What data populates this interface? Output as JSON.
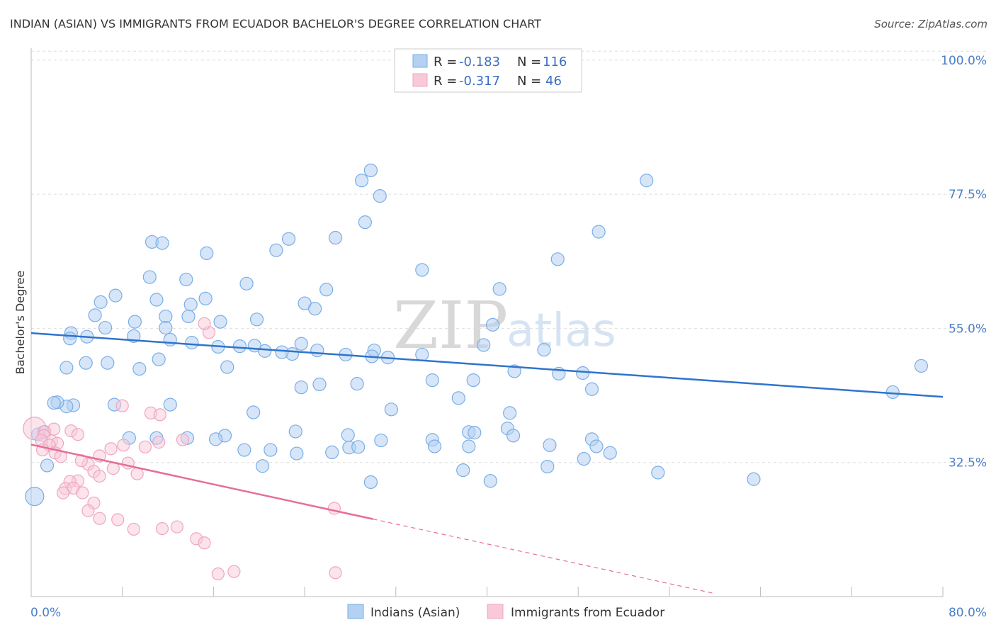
{
  "chart_data": {
    "type": "scatter",
    "title": "INDIAN (ASIAN) VS IMMIGRANTS FROM ECUADOR BACHELOR'S DEGREE CORRELATION CHART",
    "source": "Source: ZipAtlas.com",
    "watermark": [
      "ZIP",
      "atlas"
    ],
    "ylabel": "Bachelor's Degree",
    "xlim": [
      0,
      80
    ],
    "ylim": [
      10,
      102
    ],
    "y_ticks": [
      {
        "value": 100,
        "label": "100.0%"
      },
      {
        "value": 77.5,
        "label": "77.5%"
      },
      {
        "value": 55,
        "label": "55.0%"
      },
      {
        "value": 32.5,
        "label": "32.5%"
      }
    ],
    "x_axis_labels": [
      {
        "value": 0,
        "label": "0.0%"
      },
      {
        "value": 80,
        "label": "80.0%"
      }
    ],
    "legend": {
      "entries": [
        {
          "r_label": "R =",
          "r_value": "-0.183",
          "n_label": "N =",
          "n_value": "116"
        },
        {
          "r_label": "R =",
          "r_value": "-0.317",
          "n_label": "N =",
          "n_value": "46"
        }
      ]
    },
    "series": [
      {
        "name": "Indians (Asian)",
        "color": "#7aaee6",
        "fill": "#b4d0f2",
        "line_color": "#2f74cc",
        "trend": {
          "x0": 0,
          "y0": 54.2,
          "x1": 80,
          "y1": 43.5,
          "dashed_from": null
        },
        "points": [
          [
            29.8,
            81.5
          ],
          [
            29.0,
            79.8
          ],
          [
            30.6,
            77.2
          ],
          [
            54.0,
            79.8
          ],
          [
            29.3,
            72.8
          ],
          [
            49.8,
            71.2
          ],
          [
            26.7,
            70.2
          ],
          [
            22.6,
            70.0
          ],
          [
            10.6,
            69.5
          ],
          [
            11.5,
            69.3
          ],
          [
            21.5,
            68.1
          ],
          [
            15.4,
            67.6
          ],
          [
            46.2,
            66.6
          ],
          [
            34.3,
            64.8
          ],
          [
            10.4,
            63.6
          ],
          [
            13.6,
            63.2
          ],
          [
            18.9,
            62.5
          ],
          [
            25.9,
            61.5
          ],
          [
            41.1,
            61.6
          ],
          [
            7.4,
            60.5
          ],
          [
            15.3,
            60.0
          ],
          [
            11.0,
            59.8
          ],
          [
            6.1,
            59.4
          ],
          [
            14.0,
            59.0
          ],
          [
            24.0,
            59.2
          ],
          [
            24.9,
            58.3
          ],
          [
            5.6,
            57.2
          ],
          [
            11.8,
            57.0
          ],
          [
            13.8,
            57.0
          ],
          [
            9.1,
            56.1
          ],
          [
            19.8,
            56.5
          ],
          [
            16.6,
            56.1
          ],
          [
            40.5,
            55.6
          ],
          [
            6.5,
            55.1
          ],
          [
            11.8,
            55.1
          ],
          [
            9.0,
            53.7
          ],
          [
            12.2,
            53.1
          ],
          [
            14.1,
            52.6
          ],
          [
            18.3,
            52.0
          ],
          [
            16.4,
            51.9
          ],
          [
            20.5,
            51.2
          ],
          [
            30.1,
            51.3
          ],
          [
            25.1,
            51.3
          ],
          [
            29.9,
            50.3
          ],
          [
            31.3,
            50.1
          ],
          [
            22.9,
            50.7
          ],
          [
            27.6,
            50.6
          ],
          [
            34.3,
            50.6
          ],
          [
            3.5,
            54.2
          ],
          [
            4.9,
            53.6
          ],
          [
            3.4,
            53.3
          ],
          [
            23.7,
            52.4
          ],
          [
            39.7,
            52.2
          ],
          [
            19.6,
            52.1
          ],
          [
            45.0,
            51.4
          ],
          [
            22.0,
            51.0
          ],
          [
            11.2,
            49.8
          ],
          [
            6.7,
            49.2
          ],
          [
            4.8,
            49.2
          ],
          [
            3.1,
            48.4
          ],
          [
            17.2,
            48.5
          ],
          [
            9.5,
            48.2
          ],
          [
            42.4,
            47.8
          ],
          [
            46.3,
            47.4
          ],
          [
            48.4,
            47.5
          ],
          [
            35.2,
            46.3
          ],
          [
            38.8,
            46.3
          ],
          [
            28.6,
            45.7
          ],
          [
            25.3,
            45.6
          ],
          [
            23.7,
            45.1
          ],
          [
            78.1,
            48.7
          ],
          [
            75.6,
            44.3
          ],
          [
            49.2,
            44.8
          ],
          [
            37.5,
            43.3
          ],
          [
            3.7,
            42.1
          ],
          [
            3.1,
            41.9
          ],
          [
            2.3,
            42.6
          ],
          [
            2.0,
            42.5
          ],
          [
            7.3,
            42.2
          ],
          [
            12.2,
            42.2
          ],
          [
            31.6,
            41.4
          ],
          [
            42.0,
            40.8
          ],
          [
            41.8,
            38.2
          ],
          [
            42.3,
            37.0
          ],
          [
            35.2,
            36.3
          ],
          [
            35.4,
            35.2
          ],
          [
            38.4,
            35.2
          ],
          [
            30.7,
            36.2
          ],
          [
            27.9,
            35.0
          ],
          [
            27.8,
            37.1
          ],
          [
            23.2,
            37.7
          ],
          [
            19.5,
            40.9
          ],
          [
            17.0,
            37.0
          ],
          [
            16.2,
            36.4
          ],
          [
            13.7,
            36.6
          ],
          [
            11.0,
            36.6
          ],
          [
            8.6,
            36.6
          ],
          [
            38.4,
            37.6
          ],
          [
            38.9,
            37.5
          ],
          [
            49.2,
            36.4
          ],
          [
            45.5,
            35.4
          ],
          [
            49.6,
            35.2
          ],
          [
            50.8,
            34.1
          ],
          [
            48.5,
            33.1
          ],
          [
            23.3,
            34.0
          ],
          [
            21.0,
            34.6
          ],
          [
            18.7,
            34.6
          ],
          [
            26.4,
            34.2
          ],
          [
            28.7,
            35.1
          ],
          [
            20.3,
            31.9
          ],
          [
            37.9,
            31.2
          ],
          [
            45.3,
            31.8
          ],
          [
            55.0,
            30.8
          ],
          [
            63.4,
            29.7
          ],
          [
            40.3,
            29.4
          ],
          [
            29.8,
            29.2
          ],
          [
            1.4,
            32.0
          ],
          [
            0.3,
            26.8
          ],
          [
            1.1,
            37.6
          ],
          [
            0.6,
            37.2
          ]
        ]
      },
      {
        "name": "Immigrants from Ecuador",
        "color": "#f0a5bf",
        "fill": "#f8cad9",
        "line_color": "#e66e96",
        "trend": {
          "x0": 0,
          "y0": 35.5,
          "x1": 30,
          "y1": 23.0,
          "dashed_to_x": 60,
          "dashed_to_y": 10.5
        },
        "points": [
          [
            0.3,
            38.2
          ],
          [
            1.2,
            37.7
          ],
          [
            1.1,
            37.0
          ],
          [
            2.0,
            38.1
          ],
          [
            1.8,
            36.1
          ],
          [
            0.9,
            36.2
          ],
          [
            2.3,
            35.7
          ],
          [
            1.6,
            35.4
          ],
          [
            1.0,
            34.6
          ],
          [
            2.1,
            34.1
          ],
          [
            2.6,
            33.5
          ],
          [
            3.5,
            37.8
          ],
          [
            4.1,
            37.2
          ],
          [
            8.0,
            42.0
          ],
          [
            10.5,
            40.8
          ],
          [
            11.3,
            40.5
          ],
          [
            15.6,
            54.3
          ],
          [
            15.2,
            55.8
          ],
          [
            13.3,
            36.3
          ],
          [
            11.2,
            35.9
          ],
          [
            10.0,
            35.1
          ],
          [
            8.1,
            35.4
          ],
          [
            7.0,
            34.8
          ],
          [
            6.0,
            33.6
          ],
          [
            5.0,
            32.2
          ],
          [
            4.4,
            32.8
          ],
          [
            5.5,
            31.0
          ],
          [
            6.0,
            30.2
          ],
          [
            7.2,
            31.5
          ],
          [
            8.5,
            32.4
          ],
          [
            9.3,
            30.6
          ],
          [
            4.1,
            29.4
          ],
          [
            3.4,
            29.3
          ],
          [
            3.0,
            28.1
          ],
          [
            3.7,
            28.2
          ],
          [
            2.8,
            27.4
          ],
          [
            4.5,
            27.4
          ],
          [
            5.5,
            25.7
          ],
          [
            5.0,
            24.4
          ],
          [
            6.0,
            23.1
          ],
          [
            7.6,
            22.9
          ],
          [
            9.0,
            21.3
          ],
          [
            11.5,
            21.4
          ],
          [
            12.8,
            21.7
          ],
          [
            14.5,
            19.7
          ],
          [
            15.2,
            19.0
          ],
          [
            16.4,
            13.8
          ],
          [
            17.8,
            14.2
          ],
          [
            26.7,
            14.0
          ],
          [
            26.6,
            24.8
          ]
        ]
      }
    ]
  },
  "bottom_legend": [
    "Indians (Asian)",
    "Immigrants from Ecuador"
  ]
}
